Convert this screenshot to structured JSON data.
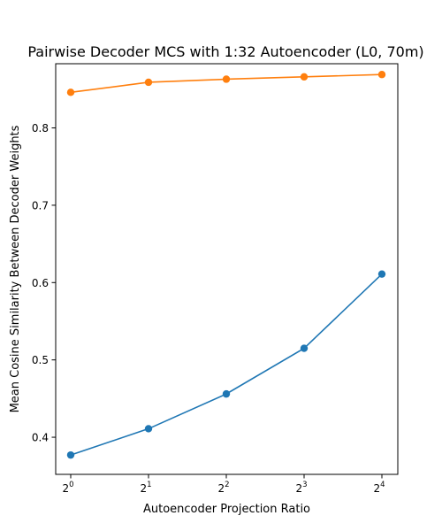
{
  "chart_data": {
    "type": "line",
    "title": "Pairwise Decoder MCS with 1:32 Autoencoder (L0, 70m)",
    "xlabel": "Autoencoder Projection Ratio",
    "ylabel": "Mean Cosine Similarity Between Decoder Weights",
    "x": [
      1,
      2,
      4,
      8,
      16
    ],
    "x_scale": "log2",
    "x_tick_base": "2",
    "x_tick_exponents": [
      "0",
      "1",
      "2",
      "3",
      "4"
    ],
    "y_ticks": [
      "0.4",
      "0.5",
      "0.6",
      "0.7",
      "0.8"
    ],
    "ylim": [
      0.352,
      0.883
    ],
    "grid": false,
    "series": [
      {
        "color": "#1f77b4",
        "values": [
          0.377,
          0.411,
          0.456,
          0.515,
          0.611
        ]
      },
      {
        "color": "#ff7f0e",
        "values": [
          0.846,
          0.859,
          0.863,
          0.866,
          0.869
        ]
      }
    ]
  }
}
